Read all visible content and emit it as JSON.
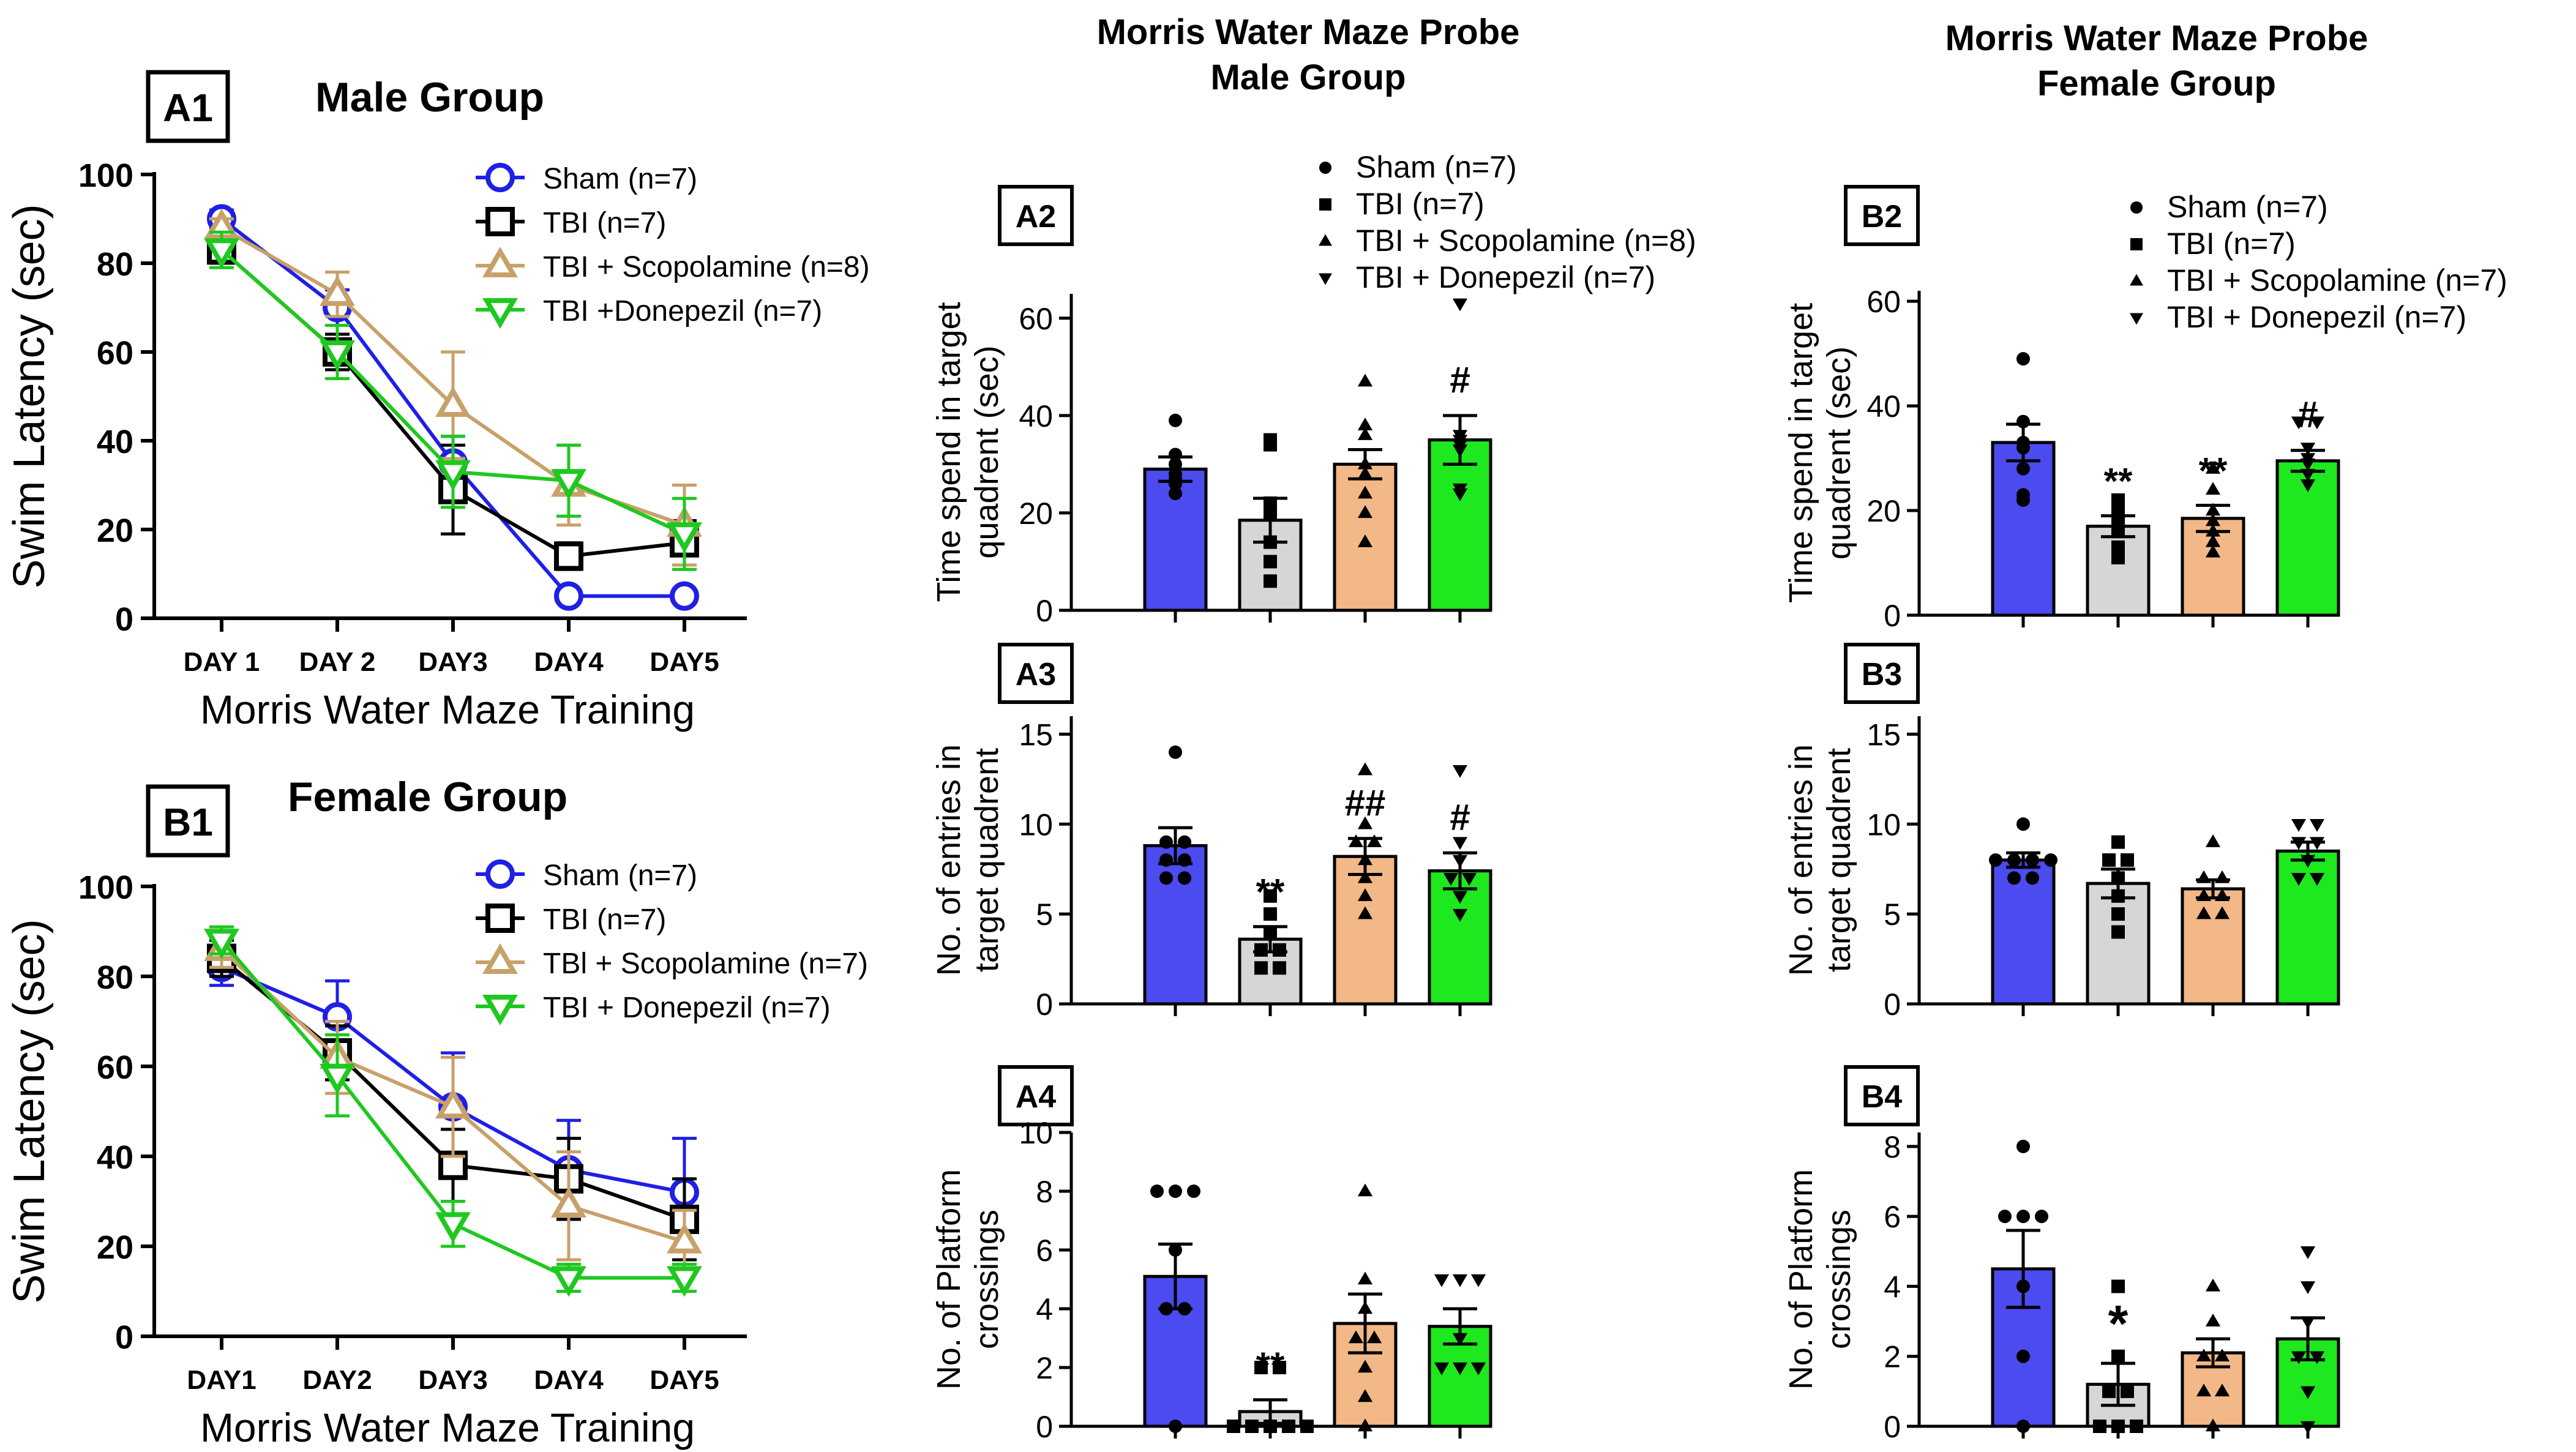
{
  "chart_data": [
    {
      "id": "A1",
      "type": "line",
      "panel_label": "A1",
      "title": "Male Group",
      "xlabel": "Morris Water Maze Training",
      "ylabel": "Swim Latency (sec)",
      "ylim": [
        0,
        100
      ],
      "yticks": [
        "0",
        "20",
        "40",
        "60",
        "80",
        "100"
      ],
      "categories": [
        "DAY 1",
        "DAY 2",
        "DAY3",
        "DAY4",
        "DAY5"
      ],
      "series": [
        {
          "name": "Sham (n=7)",
          "color": "#1f1fe6",
          "marker": "circle",
          "values": [
            90,
            70,
            35,
            5,
            5
          ],
          "errors": [
            2,
            4,
            6,
            1,
            1
          ]
        },
        {
          "name": "TBI (n=7)",
          "color": "#000000",
          "marker": "square",
          "values": [
            83,
            60,
            29,
            14,
            17
          ],
          "errors": [
            3,
            4,
            10,
            3,
            5
          ]
        },
        {
          "name": "TBI + Scopolamine (n=8)",
          "color": "#c8a06a",
          "marker": "triangle-up",
          "values": [
            88,
            73,
            48,
            30,
            21
          ],
          "errors": [
            2,
            5,
            12,
            9,
            9
          ]
        },
        {
          "name": "TBI +Donepezil (n=7)",
          "color": "#1fc81f",
          "marker": "triangle-down",
          "values": [
            83,
            60,
            33,
            31,
            19
          ],
          "errors": [
            4,
            6,
            8,
            8,
            8
          ]
        }
      ]
    },
    {
      "id": "B1",
      "type": "line",
      "panel_label": "B1",
      "title": "Female Group",
      "xlabel": "Morris Water Maze Training",
      "ylabel": "Swim Latency (sec)",
      "ylim": [
        0,
        100
      ],
      "yticks": [
        "0",
        "20",
        "40",
        "60",
        "80",
        "100"
      ],
      "categories": [
        "DAY1",
        "DAY2",
        "DAY3",
        "DAY4",
        "DAY5"
      ],
      "series": [
        {
          "name": "Sham (n=7)",
          "color": "#1f1fe6",
          "marker": "circle",
          "values": [
            82,
            71,
            51,
            37,
            32
          ],
          "errors": [
            4,
            8,
            12,
            11,
            12
          ]
        },
        {
          "name": "TBI (n=7)",
          "color": "#000000",
          "marker": "square",
          "values": [
            84,
            63,
            38,
            35,
            26
          ],
          "errors": [
            4,
            6,
            8,
            9,
            9
          ]
        },
        {
          "name": "TBl + Scopolamine (n=7)",
          "color": "#c8a06a",
          "marker": "triangle-up",
          "values": [
            86,
            62,
            51,
            29,
            21
          ],
          "errors": [
            4,
            8,
            11,
            12,
            7
          ]
        },
        {
          "name": "TBI + Donepezil (n=7)",
          "color": "#1fc81f",
          "marker": "triangle-down",
          "values": [
            88,
            58,
            25,
            13,
            13
          ],
          "errors": [
            3,
            9,
            5,
            3,
            3
          ]
        }
      ]
    },
    {
      "id": "A2",
      "type": "bar",
      "panel_label": "A2",
      "ylabel": "Time spend in target quadrent (sec)",
      "ylim": [
        0,
        65
      ],
      "yticks": [
        "0",
        "20",
        "40",
        "60"
      ],
      "tick_values": [
        0,
        20,
        40,
        60
      ],
      "categories": [
        "Sham",
        "TBI",
        "TBI + Scopolamine",
        "TBI + Donepezil"
      ],
      "values": [
        29,
        18.5,
        30,
        35
      ],
      "errors": [
        2.5,
        4.5,
        3,
        5
      ],
      "points": [
        [
          39,
          32,
          30,
          28,
          27,
          26,
          24
        ],
        [
          35,
          34,
          22,
          20,
          14,
          10,
          6
        ],
        [
          47,
          38,
          36,
          30,
          28,
          24,
          20,
          14
        ],
        [
          63,
          36,
          35,
          34,
          33,
          25,
          24
        ]
      ],
      "annotations": [
        "",
        "",
        "",
        "#"
      ],
      "legend": [
        "Sham (n=7)",
        "TBI (n=7)",
        "TBI + Scopolamine (n=8)",
        "TBI + Donepezil (n=7)"
      ]
    },
    {
      "id": "A3",
      "type": "bar",
      "panel_label": "A3",
      "ylabel": "No. of entries in target quadrent",
      "ylim": [
        0,
        16
      ],
      "yticks": [
        "0",
        "5",
        "10",
        "15"
      ],
      "tick_values": [
        0,
        5,
        10,
        15
      ],
      "categories": [
        "Sham",
        "TBI",
        "TBI + Scopolamine",
        "TBI + Donepezil"
      ],
      "values": [
        8.8,
        3.6,
        8.2,
        7.4
      ],
      "errors": [
        1,
        0.7,
        1,
        1
      ],
      "points": [
        [
          14,
          9,
          9,
          8,
          8,
          7,
          7
        ],
        [
          6,
          5,
          4,
          3,
          3,
          2,
          2
        ],
        [
          13,
          10,
          9,
          9,
          8,
          7,
          6,
          5
        ],
        [
          13,
          9,
          8,
          7,
          7,
          6,
          5
        ]
      ],
      "annotations": [
        "",
        "**",
        "##",
        "#"
      ]
    },
    {
      "id": "A4",
      "type": "bar",
      "panel_label": "A4",
      "ylabel": "No. of Platform crossings",
      "ylim": [
        0,
        10
      ],
      "yticks": [
        "0",
        "2",
        "4",
        "6",
        "8",
        "10"
      ],
      "tick_values": [
        0,
        2,
        4,
        6,
        8,
        10
      ],
      "categories": [
        "Sham",
        "TBI",
        "TBI + Scopolamine",
        "TBI + Donepezil"
      ],
      "values": [
        5.1,
        0.5,
        3.5,
        3.4
      ],
      "errors": [
        1.1,
        0.4,
        1,
        0.6
      ],
      "points": [
        [
          8,
          8,
          8,
          6,
          4,
          4,
          0
        ],
        [
          2,
          2,
          0,
          0,
          0,
          0,
          0
        ],
        [
          8,
          5,
          4,
          3,
          3,
          2,
          1,
          0
        ],
        [
          5,
          5,
          5,
          3,
          2,
          2,
          2
        ]
      ],
      "annotations": [
        "",
        "**",
        "",
        ""
      ]
    },
    {
      "id": "B2",
      "type": "bar",
      "panel_label": "B2",
      "ylabel": "Time spend in target quadrent (sec)",
      "ylim": [
        0,
        62
      ],
      "yticks": [
        "0",
        "20",
        "40",
        "60"
      ],
      "tick_values": [
        0,
        20,
        40,
        60
      ],
      "categories": [
        "Sham",
        "TBI",
        "TBI + Scopolamine",
        "TBI + Donepezil"
      ],
      "values": [
        33,
        17,
        18.5,
        29.5
      ],
      "errors": [
        3.5,
        2,
        2.5,
        2
      ],
      "points": [
        [
          49,
          37,
          33,
          32,
          28,
          23,
          22
        ],
        [
          22,
          21,
          20,
          18,
          16,
          13,
          11
        ],
        [
          28,
          24,
          20,
          18,
          16,
          14,
          12
        ],
        [
          37,
          37,
          32,
          30,
          29,
          27,
          25
        ]
      ],
      "annotations": [
        "",
        "**",
        "**",
        "#"
      ],
      "legend": [
        "Sham (n=7)",
        "TBI (n=7)",
        "TBI + Scopolamine (n=7)",
        "TBI + Donepezil (n=7)"
      ]
    },
    {
      "id": "B3",
      "type": "bar",
      "panel_label": "B3",
      "ylabel": "No. of entries in target quadrent",
      "ylim": [
        0,
        16
      ],
      "yticks": [
        "0",
        "5",
        "10",
        "15"
      ],
      "tick_values": [
        0,
        5,
        10,
        15
      ],
      "categories": [
        "Sham",
        "TBI",
        "TBI + Scopolamine",
        "TBI + Donepezil"
      ],
      "values": [
        8,
        6.7,
        6.4,
        8.5
      ],
      "errors": [
        0.4,
        0.8,
        0.5,
        0.5
      ],
      "points": [
        [
          10,
          8,
          8,
          8,
          8,
          7,
          7
        ],
        [
          9,
          8,
          8,
          7,
          6,
          5,
          4
        ],
        [
          9,
          7,
          7,
          6,
          6,
          5,
          5
        ],
        [
          10,
          10,
          9,
          9,
          8,
          7,
          7
        ]
      ],
      "annotations": [
        "",
        "",
        "",
        ""
      ]
    },
    {
      "id": "B4",
      "type": "bar",
      "panel_label": "B4",
      "ylabel": "No. of Platform crossings",
      "ylim": [
        0,
        8.4
      ],
      "yticks": [
        "0",
        "2",
        "4",
        "6",
        "8"
      ],
      "tick_values": [
        0,
        2,
        4,
        6,
        8
      ],
      "categories": [
        "Sham",
        "TBI",
        "TBI + Scopolamine",
        "TBI + Donepezil"
      ],
      "values": [
        4.5,
        1.2,
        2.1,
        2.5
      ],
      "errors": [
        1.1,
        0.6,
        0.4,
        0.6
      ],
      "points": [
        [
          8,
          6,
          6,
          6,
          4,
          2,
          0
        ],
        [
          4,
          2,
          1,
          1,
          0,
          0,
          0
        ],
        [
          4,
          3,
          2,
          2,
          1,
          1,
          0
        ],
        [
          5,
          4,
          3,
          2,
          2,
          1,
          0
        ]
      ],
      "annotations": [
        "",
        "*",
        "",
        ""
      ]
    }
  ],
  "headers": {
    "male": {
      "line1": "Morris Water Maze Probe",
      "line2": "Male Group"
    },
    "female": {
      "line1": "Morris Water Maze Probe",
      "line2": "Female Group"
    }
  },
  "colors": {
    "sham": "#4b4bef",
    "tbi": "#d6d6d6",
    "scopolamine": "#f3b887",
    "donepezil": "#1ee81e"
  }
}
